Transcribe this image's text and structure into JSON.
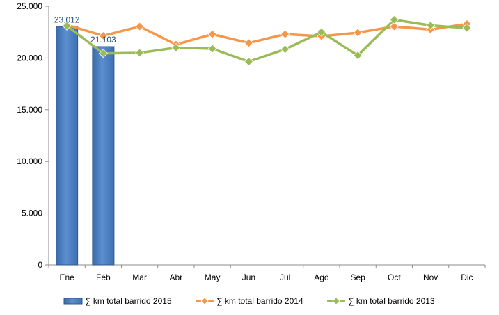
{
  "chart_data": {
    "type": "bar+line",
    "categories": [
      "Ene",
      "Feb",
      "Mar",
      "Abr",
      "May",
      "Jun",
      "Jul",
      "Ago",
      "Sep",
      "Oct",
      "Nov",
      "Dic"
    ],
    "ylim": [
      0,
      25000
    ],
    "ytick_labels": [
      "0",
      "5.000",
      "10.000",
      "15.000",
      "20.000",
      "25.000"
    ],
    "legend_position": "bottom",
    "grid": false,
    "series": [
      {
        "name": "∑ km total barrido 2015",
        "kind": "bar",
        "color": "#4f81bd",
        "values": [
          23012,
          21103,
          null,
          null,
          null,
          null,
          null,
          null,
          null,
          null,
          null,
          null
        ],
        "data_labels": [
          "23.012",
          "21.103"
        ]
      },
      {
        "name": "∑ km total barrido 2014",
        "kind": "line",
        "color": "#f79646",
        "values": [
          23200,
          22150,
          23050,
          21300,
          22300,
          21450,
          22300,
          22100,
          22450,
          23050,
          22750,
          23300
        ]
      },
      {
        "name": "∑ km total barrido 2013",
        "kind": "line",
        "color": "#9bbb59",
        "values": [
          23100,
          20450,
          20500,
          21000,
          20900,
          19650,
          20850,
          22500,
          20250,
          23700,
          23150,
          22900
        ]
      }
    ]
  }
}
